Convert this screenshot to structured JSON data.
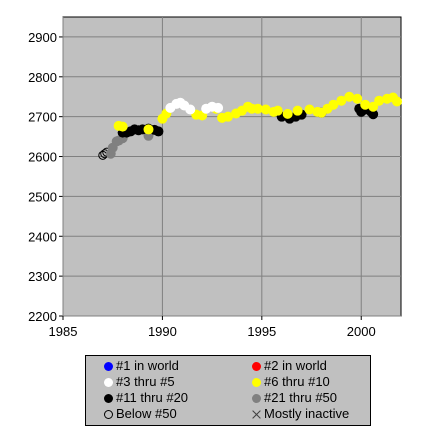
{
  "chart_data": {
    "type": "scatter",
    "xlim": [
      1985,
      2002
    ],
    "ylim": [
      2200,
      2950
    ],
    "x_ticks": [
      1985,
      1990,
      1995,
      2000
    ],
    "y_ticks": [
      2200,
      2300,
      2400,
      2500,
      2600,
      2700,
      2800,
      2900
    ],
    "grid": true,
    "plot_background": "#c0c0c0",
    "legend_position": "bottom",
    "series": [
      {
        "name": "Below #50",
        "color": "#000000",
        "marker": "hollow-circle",
        "points": [
          [
            1987.0,
            2603
          ],
          [
            1987.1,
            2607
          ],
          [
            1987.2,
            2611
          ]
        ]
      },
      {
        "name": "#21 thru #50",
        "color": "#808080",
        "marker": "circle",
        "points": [
          [
            1987.4,
            2607
          ],
          [
            1987.5,
            2622
          ],
          [
            1987.7,
            2638
          ],
          [
            1987.8,
            2640
          ],
          [
            1988.0,
            2646
          ],
          [
            1989.3,
            2652
          ]
        ]
      },
      {
        "name": "#11 thru #20",
        "color": "#000000",
        "marker": "circle",
        "points": [
          [
            1988.0,
            2660
          ],
          [
            1988.2,
            2660
          ],
          [
            1988.4,
            2663
          ],
          [
            1988.6,
            2668
          ],
          [
            1988.8,
            2666
          ],
          [
            1989.0,
            2668
          ],
          [
            1989.3,
            2670
          ],
          [
            1989.6,
            2667
          ],
          [
            1989.8,
            2663
          ],
          [
            1996.0,
            2700
          ],
          [
            1996.4,
            2695
          ],
          [
            1996.7,
            2700
          ],
          [
            1997.0,
            2705
          ],
          [
            1998.0,
            2710
          ],
          [
            1999.9,
            2720
          ],
          [
            2000.0,
            2712
          ],
          [
            2000.2,
            2718
          ],
          [
            2000.5,
            2712
          ],
          [
            2000.6,
            2706
          ]
        ]
      },
      {
        "name": "#6 thru #10",
        "color": "#ffff00",
        "marker": "circle",
        "points": [
          [
            1987.8,
            2677
          ],
          [
            1988.0,
            2675
          ],
          [
            1989.3,
            2668
          ],
          [
            1990.0,
            2695
          ],
          [
            1990.2,
            2708
          ],
          [
            1991.7,
            2705
          ],
          [
            1992.0,
            2703
          ],
          [
            1992.7,
            2720
          ],
          [
            1993.0,
            2697
          ],
          [
            1993.3,
            2700
          ],
          [
            1993.7,
            2708
          ],
          [
            1994.0,
            2715
          ],
          [
            1994.3,
            2725
          ],
          [
            1994.5,
            2720
          ],
          [
            1994.8,
            2720
          ],
          [
            1995.2,
            2718
          ],
          [
            1995.6,
            2712
          ],
          [
            1995.8,
            2715
          ],
          [
            1996.3,
            2707
          ],
          [
            1996.8,
            2715
          ],
          [
            1997.4,
            2718
          ],
          [
            1997.8,
            2712
          ],
          [
            1998.0,
            2710
          ],
          [
            1998.3,
            2720
          ],
          [
            1998.6,
            2730
          ],
          [
            1999.0,
            2740
          ],
          [
            1999.4,
            2750
          ],
          [
            1999.8,
            2745
          ],
          [
            2000.2,
            2730
          ],
          [
            2000.6,
            2725
          ],
          [
            2000.9,
            2740
          ],
          [
            2001.3,
            2745
          ],
          [
            2001.6,
            2748
          ],
          [
            2001.8,
            2738
          ]
        ]
      },
      {
        "name": "#3 thru #5",
        "color": "#ffffff",
        "marker": "circle",
        "points": [
          [
            1990.4,
            2722
          ],
          [
            1990.7,
            2732
          ],
          [
            1990.9,
            2735
          ],
          [
            1991.1,
            2728
          ],
          [
            1991.4,
            2718
          ],
          [
            1992.2,
            2720
          ],
          [
            1992.5,
            2725
          ],
          [
            1992.8,
            2722
          ]
        ]
      }
    ]
  },
  "legend": {
    "items": [
      {
        "label": "#1 in world",
        "color": "#0000ff",
        "marker": "filled"
      },
      {
        "label": "#2 in world",
        "color": "#ff0000",
        "marker": "filled"
      },
      {
        "label": "#3 thru #5",
        "color": "#ffffff",
        "marker": "filled"
      },
      {
        "label": "#6 thru #10",
        "color": "#ffff00",
        "marker": "filled"
      },
      {
        "label": "#11 thru #20",
        "color": "#000000",
        "marker": "filled"
      },
      {
        "label": "#21 thru #50",
        "color": "#808080",
        "marker": "filled"
      },
      {
        "label": "Below #50",
        "color": "#000000",
        "marker": "hollow"
      },
      {
        "label": "Mostly inactive",
        "color": "#404040",
        "marker": "cross"
      }
    ]
  }
}
